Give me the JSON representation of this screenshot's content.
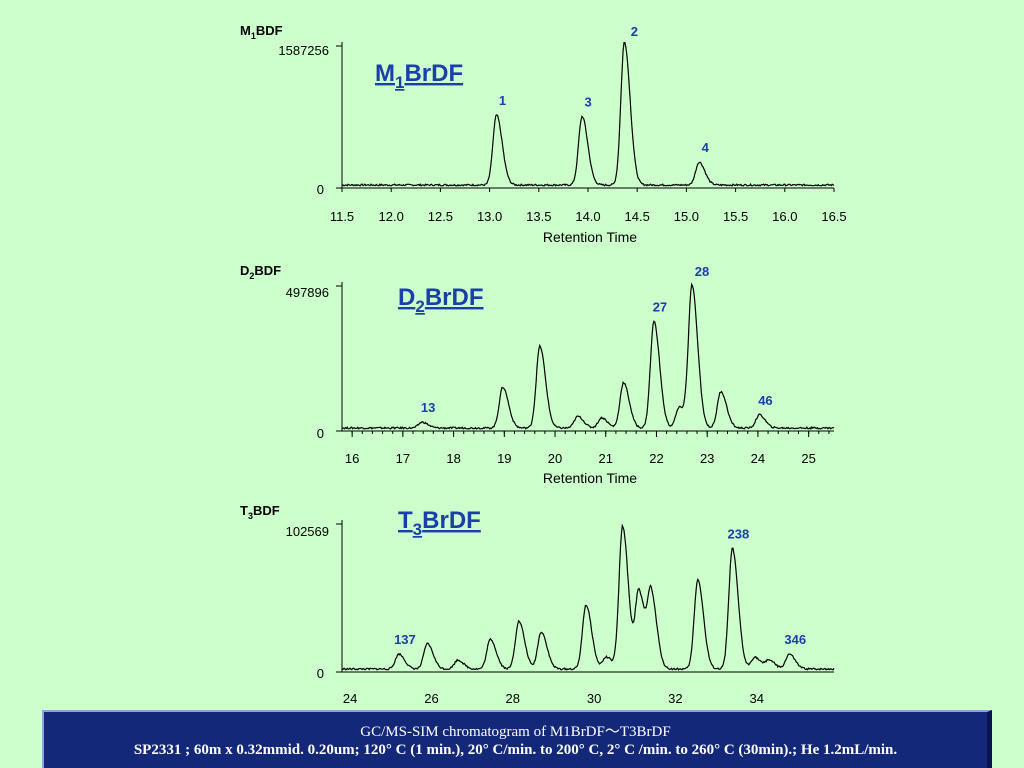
{
  "chart_data": [
    {
      "type": "line",
      "ylabel": "M1BDF",
      "ymax_label": "1587256",
      "y_zero_label": "0",
      "title": "M1BrDF",
      "xlabel": "Retention Time",
      "xlim": [
        11.5,
        16.5
      ],
      "ticks": [
        "11.5",
        "12.0",
        "12.5",
        "13.0",
        "13.5",
        "14.0",
        "14.5",
        "15.0",
        "15.5",
        "16.0",
        "16.5"
      ],
      "peaks": [
        {
          "label": "1",
          "x": 13.07,
          "y": 0.49
        },
        {
          "label": "3",
          "x": 13.94,
          "y": 0.48
        },
        {
          "label": "2",
          "x": 14.37,
          "y": 1.0
        },
        {
          "label": "4",
          "x": 15.13,
          "y": 0.16
        }
      ],
      "minor_peaks": [],
      "peak_label_color": "#1a3faa"
    },
    {
      "type": "line",
      "ylabel": "D2BDF",
      "ymax_label": "497896",
      "y_zero_label": "0",
      "title": "D2BrDF",
      "xlabel": "Retention Time",
      "xlim": [
        15.8,
        25.5
      ],
      "ticks": [
        "16",
        "17",
        "18",
        "19",
        "20",
        "21",
        "22",
        "23",
        "24",
        "25"
      ],
      "peaks": [
        {
          "label": "13",
          "x": 17.38,
          "y": 0.04
        },
        {
          "label": "27",
          "x": 21.95,
          "y": 0.73
        },
        {
          "label": "28",
          "x": 22.7,
          "y": 0.97
        },
        {
          "label": "46",
          "x": 24.03,
          "y": 0.09
        }
      ],
      "minor_peaks": [
        {
          "x": 18.97,
          "y": 0.28
        },
        {
          "x": 19.7,
          "y": 0.56
        },
        {
          "x": 20.45,
          "y": 0.08
        },
        {
          "x": 20.92,
          "y": 0.07
        },
        {
          "x": 21.35,
          "y": 0.31
        },
        {
          "x": 22.45,
          "y": 0.14
        },
        {
          "x": 23.27,
          "y": 0.25
        }
      ],
      "peak_label_color": "#1a3faa"
    },
    {
      "type": "line",
      "ylabel": "T3BDF",
      "ymax_label": "102569",
      "y_zero_label": "0",
      "title": "T3BrDF",
      "xlabel": "",
      "xlim": [
        23.8,
        35.9
      ],
      "ticks": [
        "24",
        "26",
        "28",
        "30",
        "32",
        "34"
      ],
      "peaks": [
        {
          "label": "137",
          "x": 25.2,
          "y": 0.1
        },
        {
          "label": "238",
          "x": 33.4,
          "y": 0.81
        },
        {
          "label": "346",
          "x": 34.8,
          "y": 0.1
        }
      ],
      "minor_peaks": [
        {
          "x": 25.9,
          "y": 0.17
        },
        {
          "x": 26.65,
          "y": 0.06
        },
        {
          "x": 27.45,
          "y": 0.2
        },
        {
          "x": 28.15,
          "y": 0.32
        },
        {
          "x": 28.7,
          "y": 0.25
        },
        {
          "x": 29.8,
          "y": 0.43
        },
        {
          "x": 30.3,
          "y": 0.08
        },
        {
          "x": 30.7,
          "y": 0.96
        },
        {
          "x": 31.1,
          "y": 0.52
        },
        {
          "x": 31.4,
          "y": 0.5
        },
        {
          "x": 32.55,
          "y": 0.6
        },
        {
          "x": 33.95,
          "y": 0.08
        },
        {
          "x": 34.3,
          "y": 0.06
        }
      ],
      "peak_label_color": "#1a3faa"
    }
  ],
  "caption": {
    "line1": "GC/MS-SIM chromatogram of M1BrDF～T3BrDF",
    "line2": "SP2331 ; 60m x 0.32mmid. 0.20um; 120° C (1 min.), 20° C/min. to 200° C, 2° C /min. to 260° C (30min).; He 1.2mL/min."
  },
  "colors": {
    "background": "#ccffcc",
    "trace": "#000000",
    "title_text": "#1a3faa",
    "caption_bg": "#14287a",
    "caption_text": "#ffffff"
  }
}
